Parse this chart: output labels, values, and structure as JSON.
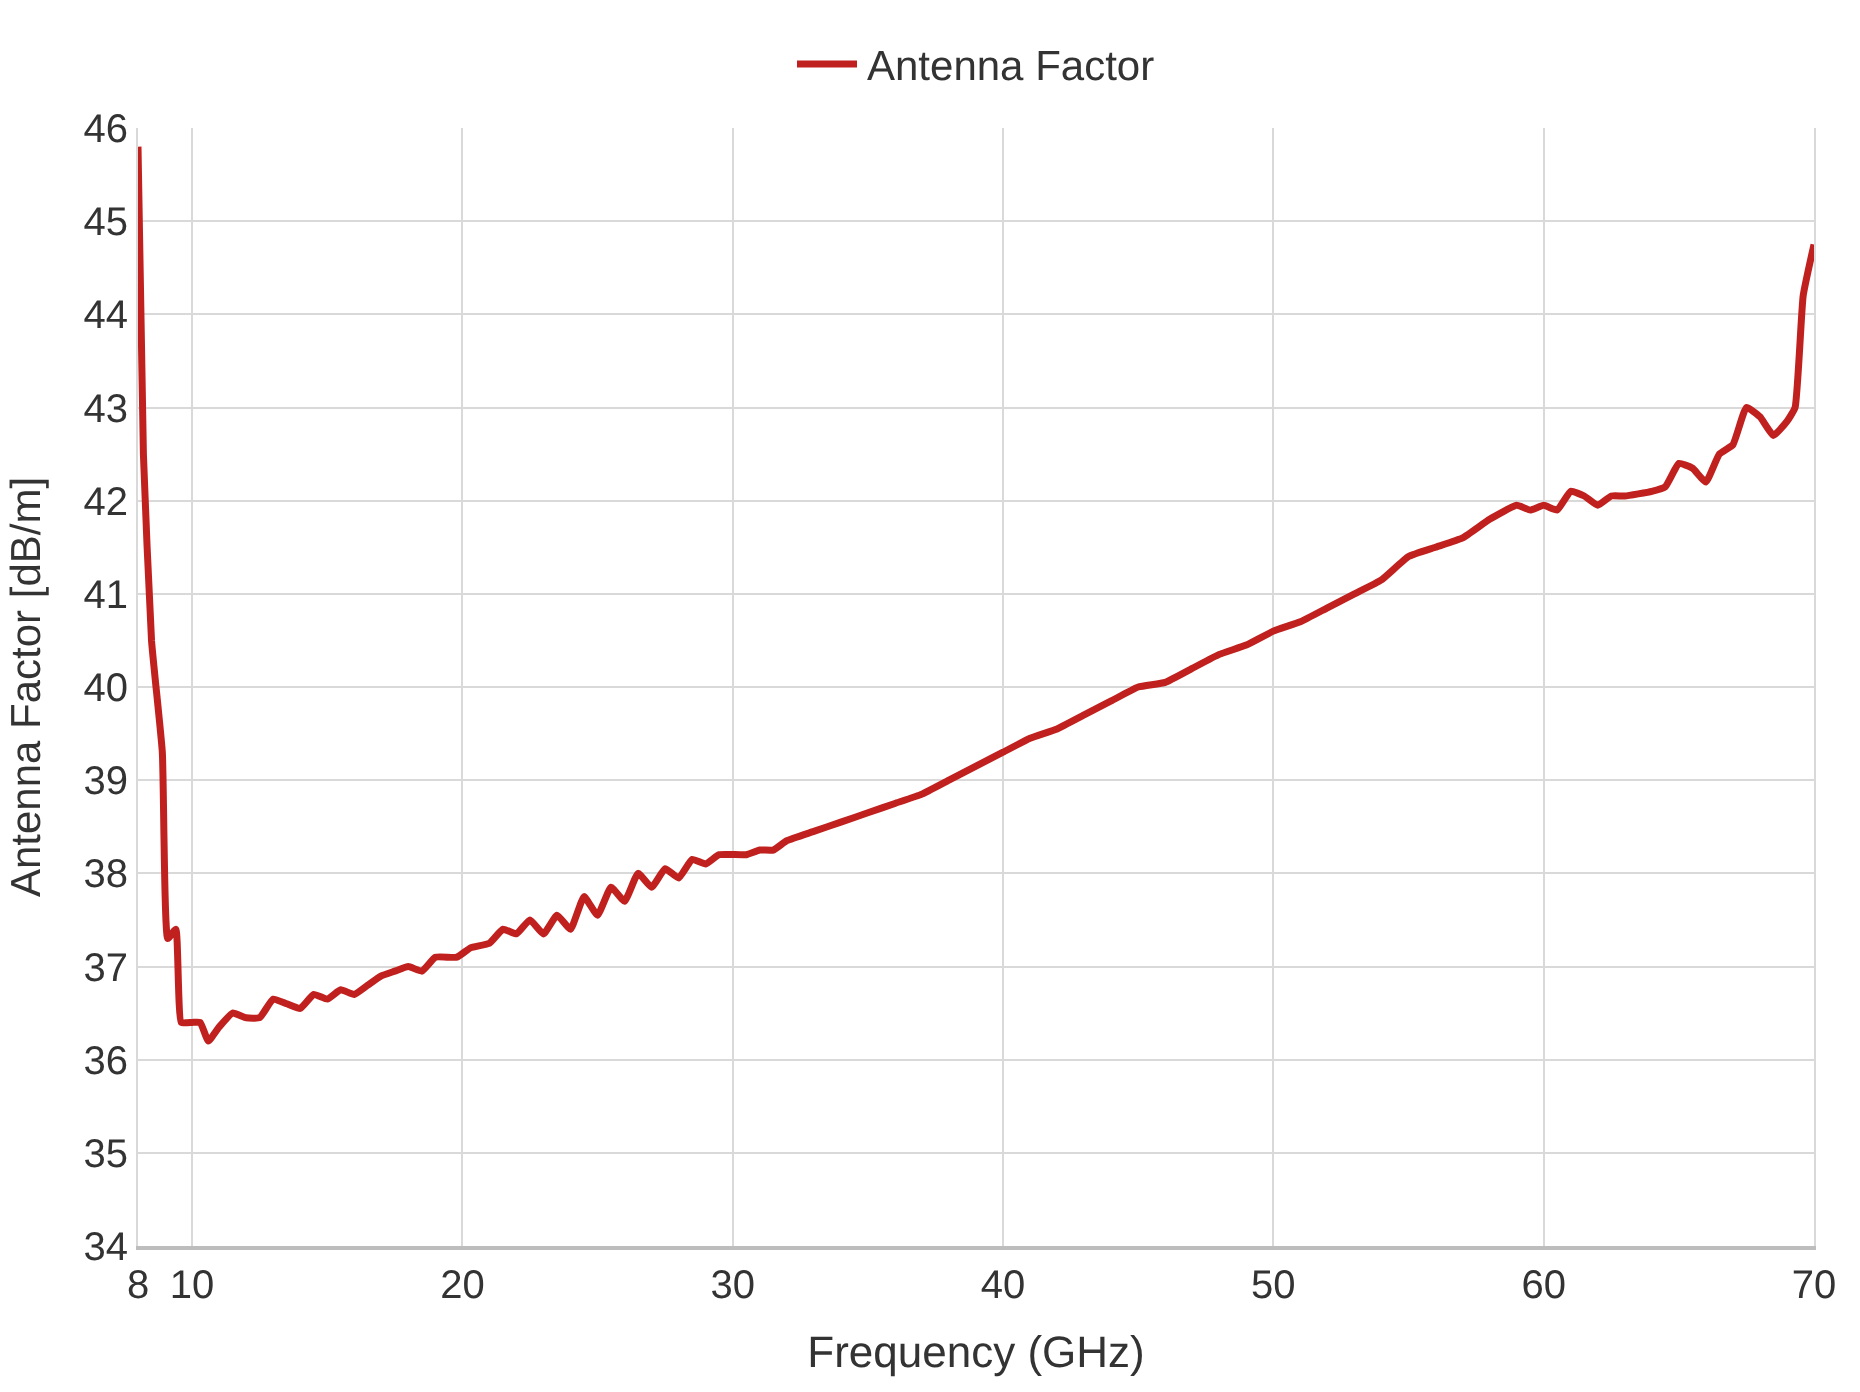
{
  "chart_data": {
    "type": "line",
    "xlabel": "Frequency (GHz)",
    "ylabel": "Antenna Factor [dB/m]",
    "xlim": [
      8,
      70
    ],
    "xticks": [
      8,
      10,
      20,
      30,
      40,
      50,
      60,
      70
    ],
    "ylim": [
      34,
      46
    ],
    "yticks": [
      34,
      35,
      36,
      37,
      38,
      39,
      40,
      41,
      42,
      43,
      44,
      45,
      46
    ],
    "grid": true,
    "legend": "top",
    "marker": "none",
    "line_style": "solid",
    "series": [
      {
        "name": "Antenna Factor",
        "color": "#c0211f",
        "x": [
          8,
          8.2,
          8.5,
          8.9,
          9.1,
          9.4,
          9.6,
          10.0,
          10.3,
          10.6,
          11.0,
          11.5,
          12.0,
          12.5,
          13.0,
          13.5,
          14.0,
          14.5,
          15.0,
          15.5,
          16.0,
          16.5,
          17.0,
          17.5,
          18.0,
          18.5,
          19.0,
          19.8,
          20.3,
          21.0,
          21.5,
          22.0,
          22.5,
          23.0,
          23.5,
          24.0,
          24.5,
          25.0,
          25.5,
          26.0,
          26.5,
          27.0,
          27.5,
          28.0,
          28.5,
          29.0,
          29.5,
          30.5,
          31.0,
          31.5,
          32.0,
          33.0,
          34.0,
          35.0,
          36.0,
          37.0,
          38.0,
          39.0,
          40.0,
          41.0,
          42.0,
          43.0,
          44.0,
          45.0,
          46.0,
          47.0,
          48.0,
          49.0,
          50.0,
          51.0,
          52.0,
          53.0,
          54.0,
          55.0,
          56.0,
          57.0,
          58.0,
          59.0,
          59.5,
          60.0,
          60.5,
          61.0,
          61.5,
          62.0,
          62.5,
          63.0,
          64.0,
          64.5,
          65.0,
          65.5,
          66.0,
          66.5,
          67.0,
          67.5,
          68.0,
          68.5,
          69.0,
          69.3,
          69.6,
          70.0
        ],
        "values": [
          45.8,
          42.5,
          40.5,
          39.3,
          37.3,
          37.4,
          36.4,
          36.4,
          36.4,
          36.2,
          36.35,
          36.5,
          36.45,
          36.45,
          36.65,
          36.6,
          36.55,
          36.7,
          36.65,
          36.75,
          36.7,
          36.8,
          36.9,
          36.95,
          37.0,
          36.95,
          37.1,
          37.1,
          37.2,
          37.25,
          37.4,
          37.35,
          37.5,
          37.35,
          37.55,
          37.4,
          37.75,
          37.55,
          37.85,
          37.7,
          38.0,
          37.85,
          38.05,
          37.95,
          38.15,
          38.1,
          38.2,
          38.2,
          38.25,
          38.25,
          38.35,
          38.45,
          38.55,
          38.65,
          38.75,
          38.85,
          39.0,
          39.15,
          39.3,
          39.45,
          39.55,
          39.7,
          39.85,
          40.0,
          40.05,
          40.2,
          40.35,
          40.45,
          40.6,
          40.7,
          40.85,
          41.0,
          41.15,
          41.4,
          41.5,
          41.6,
          41.8,
          41.95,
          41.9,
          41.95,
          41.9,
          42.1,
          42.05,
          41.95,
          42.05,
          42.05,
          42.1,
          42.15,
          42.4,
          42.35,
          42.2,
          42.5,
          42.6,
          43.0,
          42.9,
          42.7,
          42.85,
          43.0,
          44.2,
          44.75
        ]
      }
    ]
  }
}
